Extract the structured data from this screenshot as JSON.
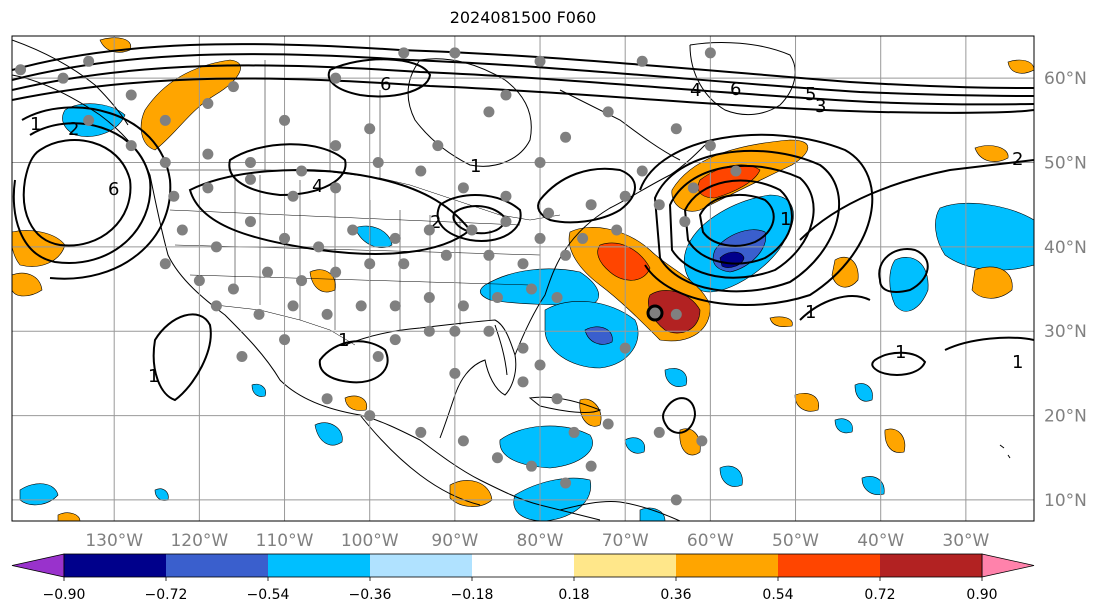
{
  "title": "2024081500 F060",
  "map": {
    "projection": "equirectangular",
    "lon_range": [
      -142,
      -22
    ],
    "lat_range": [
      7.5,
      65
    ],
    "lon_ticks": [
      {
        "value": -130,
        "label": "130°W"
      },
      {
        "value": -120,
        "label": "120°W"
      },
      {
        "value": -110,
        "label": "110°W"
      },
      {
        "value": -100,
        "label": "100°W"
      },
      {
        "value": -90,
        "label": "90°W"
      },
      {
        "value": -80,
        "label": "80°W"
      },
      {
        "value": -70,
        "label": "70°W"
      },
      {
        "value": -60,
        "label": "60°W"
      },
      {
        "value": -50,
        "label": "50°W"
      },
      {
        "value": -40,
        "label": "40°W"
      },
      {
        "value": -30,
        "label": "30°W"
      }
    ],
    "lat_ticks": [
      {
        "value": 60,
        "label": "60°N"
      },
      {
        "value": 50,
        "label": "50°N"
      },
      {
        "value": 40,
        "label": "40°N"
      },
      {
        "value": 30,
        "label": "30°N"
      },
      {
        "value": 20,
        "label": "20°N"
      },
      {
        "value": 10,
        "label": "10°N"
      }
    ],
    "tick_label_color": "#808080",
    "contour_labels": [
      "6",
      "5",
      "4",
      "3",
      "2",
      "1",
      "1",
      "1",
      "1",
      "1",
      "2",
      "4",
      "6",
      "2",
      "1",
      "1",
      "6",
      "1"
    ]
  },
  "colorbar": {
    "bounds": [
      -0.9,
      -0.72,
      -0.54,
      -0.36,
      -0.18,
      0.18,
      0.36,
      0.54,
      0.72,
      0.9
    ],
    "tick_labels": [
      "−0.90",
      "−0.72",
      "−0.54",
      "−0.36",
      "−0.18",
      "0.18",
      "0.36",
      "0.54",
      "0.72",
      "0.90"
    ],
    "colors": [
      "#9932cc",
      "#00008b",
      "#3a5fcd",
      "#00bfff",
      "#b0e2ff",
      "#ffffff",
      "#ffe78a",
      "#ffa500",
      "#ff4500",
      "#b22222",
      "#ff82ab"
    ],
    "extend": "both"
  }
}
